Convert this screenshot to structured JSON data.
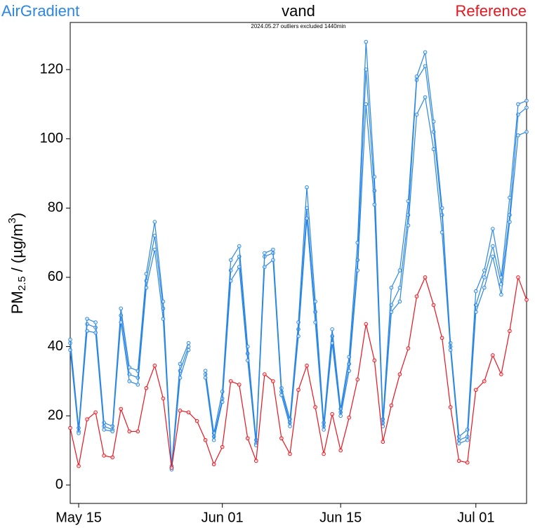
{
  "chart_data": {
    "type": "line",
    "title": "vand",
    "subtitle": "2024.05.27 outliers excluded 1440min",
    "y_label": [
      "PM",
      "2.5",
      " / (µg/m",
      "3",
      ")"
    ],
    "x": [
      "05-14",
      "05-15",
      "05-16",
      "05-17",
      "05-18",
      "05-19",
      "05-20",
      "05-21",
      "05-22",
      "05-23",
      "05-24",
      "05-25",
      "05-26",
      "05-27",
      "05-28",
      "05-29",
      "05-30",
      "05-31",
      "06-01",
      "06-02",
      "06-03",
      "06-04",
      "06-05",
      "06-06",
      "06-07",
      "06-08",
      "06-09",
      "06-10",
      "06-11",
      "06-12",
      "06-13",
      "06-14",
      "06-15",
      "06-16",
      "06-17",
      "06-18",
      "06-19",
      "06-20",
      "06-21",
      "06-22",
      "06-23",
      "06-24",
      "06-25",
      "06-26",
      "06-27",
      "06-28",
      "06-29",
      "06-30",
      "07-01",
      "07-02",
      "07-03",
      "07-04",
      "07-05",
      "07-06",
      "07-07"
    ],
    "xlim": [
      "05-14",
      "07-07"
    ],
    "xticks": [
      {
        "value": "05-15",
        "label": "May 15"
      },
      {
        "value": "06-01",
        "label": "Jun 01"
      },
      {
        "value": "06-15",
        "label": "Jun 15"
      },
      {
        "value": "07-01",
        "label": "Jul 01"
      }
    ],
    "ylim": [
      -5.3,
      133.6
    ],
    "yticks": [
      0,
      20,
      40,
      60,
      80,
      100,
      120
    ],
    "series": [
      {
        "name": "AirGradient",
        "color": "#2b87e3",
        "legend_position": "upper left",
        "lines": [
          [
            41,
            15.5,
            46.5,
            45.5,
            17,
            16,
            49,
            32,
            31,
            59,
            72,
            51,
            5,
            33,
            40,
            null,
            32,
            14,
            25,
            62,
            66,
            38,
            12,
            66,
            67,
            27,
            18,
            45,
            80,
            50,
            17,
            43,
            21,
            35,
            65,
            120,
            85,
            18,
            52,
            57,
            78,
            117,
            121,
            102,
            78,
            40,
            13,
            14,
            52,
            60,
            69,
            58,
            78,
            107,
            109
          ],
          [
            42,
            16.5,
            48,
            47,
            18,
            17,
            51,
            34,
            33,
            61,
            76,
            53,
            5.5,
            35,
            41,
            null,
            33,
            15,
            27,
            65,
            69,
            40,
            13,
            67,
            68,
            28,
            19,
            47,
            86,
            53,
            18,
            45,
            22,
            37,
            70,
            128,
            89,
            19,
            57,
            62,
            82,
            118,
            125,
            105,
            80,
            41,
            14,
            16,
            56,
            62,
            74,
            60,
            83,
            110,
            111
          ],
          [
            39,
            15,
            44.5,
            44,
            16,
            15.5,
            47,
            30,
            29,
            57,
            68,
            48,
            4.5,
            31,
            39,
            null,
            31,
            13,
            24,
            59,
            63,
            36,
            11.5,
            63,
            65,
            26,
            17,
            43,
            77,
            47,
            16,
            41,
            20,
            33,
            62,
            110,
            81,
            17,
            50,
            53,
            75,
            107,
            112,
            97,
            73,
            39,
            12,
            13,
            50,
            57,
            66,
            55,
            76,
            101,
            102
          ]
        ]
      },
      {
        "name": "Reference",
        "color": "#e8141e",
        "legend_position": "upper right",
        "lines": [
          [
            16.5,
            5.5,
            19,
            21,
            8.5,
            8,
            22,
            15.5,
            15.5,
            28,
            34.5,
            25,
            5,
            21.5,
            21,
            18.5,
            13,
            6,
            11,
            30,
            29,
            13.5,
            7,
            32,
            30,
            13.5,
            9,
            27.5,
            34.5,
            22.5,
            9,
            20.5,
            10,
            19.5,
            30.5,
            46.5,
            36,
            12.5,
            23,
            32,
            39.5,
            54.5,
            60,
            52,
            42.5,
            22.5,
            7,
            6.5,
            27.5,
            30,
            37.5,
            32,
            44.5,
            60,
            53.5
          ]
        ]
      }
    ]
  }
}
